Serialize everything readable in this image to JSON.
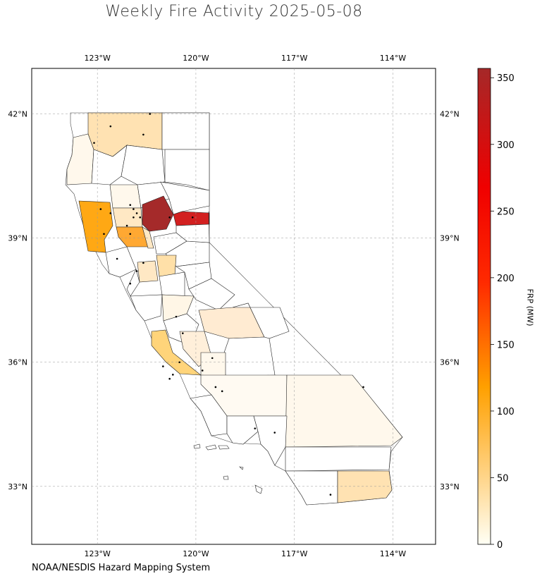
{
  "title": "Weekly Fire Activity 2025-05-08",
  "credit": "NOAA/NESDIS Hazard Mapping System",
  "map": {
    "projection": "equirectangular",
    "lon_range": [
      -125,
      -112.7
    ],
    "lat_range": [
      31.6,
      43.1
    ],
    "gridlines": true,
    "lon_ticks": [
      {
        "value": -123,
        "label": "123°W"
      },
      {
        "value": -120,
        "label": "120°W"
      },
      {
        "value": -117,
        "label": "117°W"
      },
      {
        "value": -114,
        "label": "114°W"
      }
    ],
    "lat_ticks": [
      {
        "value": 42,
        "label": "42°N"
      },
      {
        "value": 39,
        "label": "39°N"
      },
      {
        "value": 36,
        "label": "36°N"
      },
      {
        "value": 33,
        "label": "33°N"
      }
    ]
  },
  "colorbar": {
    "label": "FRP (MW)",
    "min": 0,
    "max": 357,
    "ticks": [
      0,
      50,
      100,
      150,
      200,
      250,
      300,
      350
    ],
    "colors": [
      "#fffff5",
      "#ffd58a",
      "#ffa000",
      "#ff2a00",
      "#f00000",
      "#a52828"
    ]
  },
  "chart_data": {
    "type": "heatmap",
    "title": "Weekly Fire Activity 2025-05-08",
    "value_label": "FRP (MW)",
    "regions": [
      {
        "lon": [
          -123.2,
          -121.7
        ],
        "lat": [
          41.4,
          42.0
        ],
        "frp": 50
      },
      {
        "lon": [
          -124.3,
          -123.5
        ],
        "lat": [
          40.0,
          41.3
        ],
        "frp": 8
      },
      {
        "lon": [
          -123.0,
          -122.1
        ],
        "lat": [
          39.8,
          40.1
        ],
        "frp": 8
      },
      {
        "lon": [
          -121.8,
          -120.9
        ],
        "lat": [
          39.3,
          39.8
        ],
        "frp": 357
      },
      {
        "lon": [
          -121.0,
          -120.0
        ],
        "lat": [
          39.4,
          39.6
        ],
        "frp": 270
      },
      {
        "lon": [
          -124.0,
          -122.9
        ],
        "lat": [
          38.8,
          39.8
        ],
        "frp": 115
      },
      {
        "lon": [
          -122.9,
          -122.1
        ],
        "lat": [
          39.4,
          39.8
        ],
        "frp": 40
      },
      {
        "lon": [
          -122.9,
          -122.1
        ],
        "lat": [
          38.9,
          39.4
        ],
        "frp": 105
      },
      {
        "lon": [
          -122.1,
          -121.8
        ],
        "lat": [
          38.8,
          39.3
        ],
        "frp": 40
      },
      {
        "lon": [
          -121.8,
          -121.3
        ],
        "lat": [
          38.0,
          38.5
        ],
        "frp": 55
      },
      {
        "lon": [
          -122.3,
          -121.8
        ],
        "lat": [
          38.0,
          38.3
        ],
        "frp": 30
      },
      {
        "lon": [
          -121.0,
          -120.2
        ],
        "lat": [
          36.9,
          37.6
        ],
        "frp": 15
      },
      {
        "lon": [
          -120.0,
          -118.6
        ],
        "lat": [
          36.4,
          37.3
        ],
        "frp": 22
      },
      {
        "lon": [
          -121.3,
          -120.2
        ],
        "lat": [
          35.8,
          36.7
        ],
        "frp": 70
      },
      {
        "lon": [
          -120.2,
          -119.6
        ],
        "lat": [
          35.9,
          36.6
        ],
        "frp": 10
      },
      {
        "lon": [
          -117.7,
          -114.7
        ],
        "lat": [
          34.2,
          35.8
        ],
        "frp": 10
      },
      {
        "lon": [
          -116.0,
          -114.5
        ],
        "lat": [
          32.7,
          33.4
        ],
        "frp": 45
      },
      {
        "lon": [
          -120.1,
          -119.3
        ],
        "lat": [
          34.9,
          35.7
        ],
        "frp": 4
      }
    ],
    "detections": [
      [
        -122.6,
        41.7
      ],
      [
        -121.6,
        41.5
      ],
      [
        -121.4,
        42.0
      ],
      [
        -123.1,
        41.3
      ],
      [
        -122.0,
        39.8
      ],
      [
        -121.9,
        39.7
      ],
      [
        -121.8,
        39.6
      ],
      [
        -121.7,
        39.5
      ],
      [
        -121.9,
        39.5
      ],
      [
        -122.1,
        39.3
      ],
      [
        -122.0,
        39.1
      ],
      [
        -122.9,
        39.7
      ],
      [
        -122.6,
        39.6
      ],
      [
        -122.8,
        39.1
      ],
      [
        -120.1,
        39.5
      ],
      [
        -120.8,
        39.5
      ],
      [
        -122.4,
        38.5
      ],
      [
        -121.6,
        38.4
      ],
      [
        -121.8,
        38.2
      ],
      [
        -122.0,
        37.9
      ],
      [
        -120.6,
        37.1
      ],
      [
        -120.4,
        36.7
      ],
      [
        -120.5,
        36.0
      ],
      [
        -120.7,
        35.7
      ],
      [
        -120.8,
        35.6
      ],
      [
        -121.0,
        35.9
      ],
      [
        -119.8,
        35.8
      ],
      [
        -119.5,
        36.1
      ],
      [
        -117.6,
        34.3
      ],
      [
        -118.2,
        34.4
      ],
      [
        -114.9,
        35.4
      ],
      [
        -115.9,
        32.8
      ],
      [
        -119.4,
        35.4
      ],
      [
        -119.2,
        35.3
      ]
    ]
  }
}
